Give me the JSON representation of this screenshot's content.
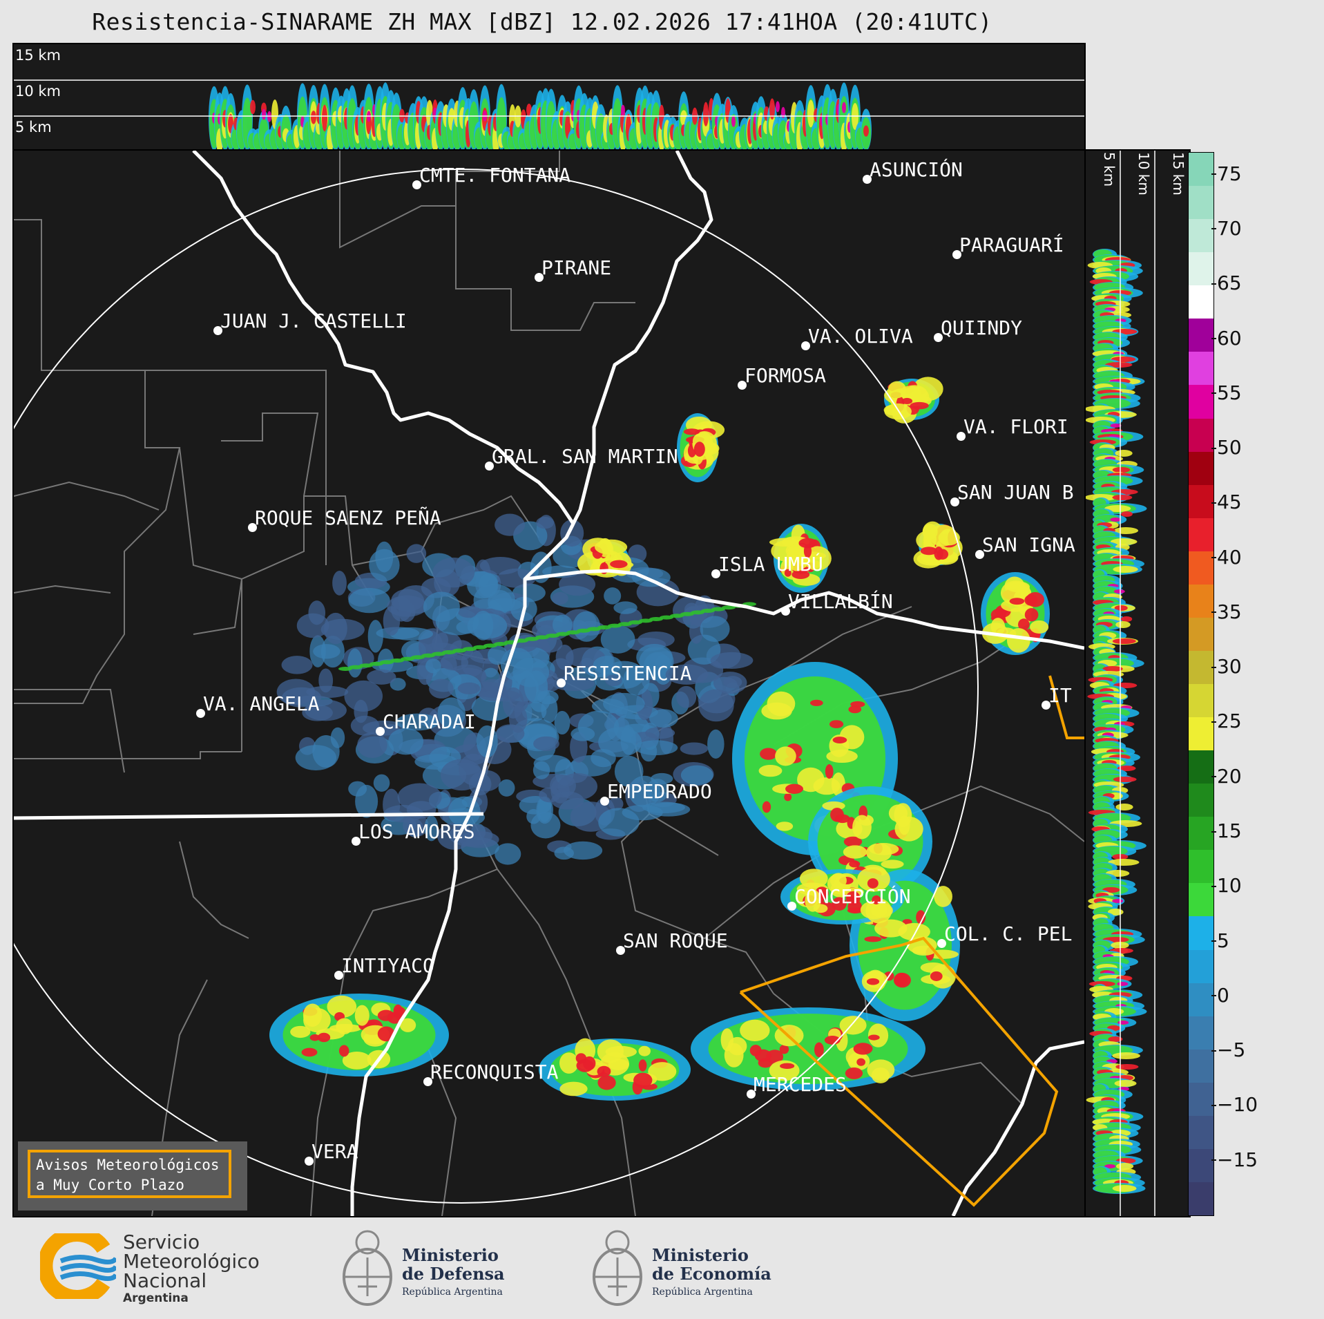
{
  "title": "Resistencia-SINARAME ZH MAX [dBZ] 12.02.2026 17:41HOA (20:41UTC)",
  "top_panel": {
    "height_labels": [
      "15 km",
      "10 km",
      "5 km"
    ]
  },
  "side_panel": {
    "height_labels": [
      "5 km",
      "10 km",
      "15 km"
    ]
  },
  "cities": [
    {
      "name": "CMTE. FONTANA"
    },
    {
      "name": "ASUNCIÓN"
    },
    {
      "name": "PARAGUARÍ"
    },
    {
      "name": "PIRANE"
    },
    {
      "name": "JUAN J. CASTELLI"
    },
    {
      "name": "VA. OLIVA"
    },
    {
      "name": "QUIINDY"
    },
    {
      "name": "FORMOSA"
    },
    {
      "name": "VA. FLORI"
    },
    {
      "name": "GRAL. SAN MARTIN"
    },
    {
      "name": "SAN JUAN B"
    },
    {
      "name": "ROQUE SAENZ PEÑA"
    },
    {
      "name": "SAN IGNA"
    },
    {
      "name": "ISLA UMBÚ"
    },
    {
      "name": "VILLALBÍN"
    },
    {
      "name": "RESISTENCIA"
    },
    {
      "name": "IT"
    },
    {
      "name": "VA. ANGELA"
    },
    {
      "name": "CHARADAI"
    },
    {
      "name": "EMPEDRADO"
    },
    {
      "name": "LOS AMORES"
    },
    {
      "name": "CONCEPCIÓN"
    },
    {
      "name": "COL. C. PEL"
    },
    {
      "name": "SAN ROQUE"
    },
    {
      "name": "INTIYACO"
    },
    {
      "name": "RECONQUISTA"
    },
    {
      "name": "MERCEDES"
    },
    {
      "name": "VERA"
    }
  ],
  "colorbar": {
    "ticks": [
      "75",
      "70",
      "65",
      "60",
      "55",
      "50",
      "45",
      "40",
      "35",
      "30",
      "25",
      "20",
      "15",
      "10",
      "5",
      "0",
      "−5",
      "−10",
      "−15"
    ],
    "range": [
      -20,
      77
    ],
    "colors": [
      "#3a3d6b",
      "#3c4878",
      "#3f5585",
      "#406292",
      "#3f70a0",
      "#3a7eb0",
      "#2f8ec2",
      "#23a0d8",
      "#1db0e8",
      "#3cd83a",
      "#2fbf2c",
      "#27a523",
      "#1f8a1c",
      "#156e15",
      "#eeee33",
      "#d6d633",
      "#c4b830",
      "#d49a24",
      "#e8821a",
      "#f05a20",
      "#e8202c",
      "#c80c1c",
      "#a00010",
      "#c80050",
      "#e000a0",
      "#e040e0",
      "#a0009a",
      "#ffffff",
      "#dff3ea",
      "#bfe9d8",
      "#a0dfc6",
      "#86d6b8"
    ]
  },
  "warning": {
    "line1": "Avisos Meteorológicos",
    "line2": "a Muy Corto Plazo"
  },
  "logos": {
    "smn": [
      "Servicio",
      "Meteorológico",
      "Nacional",
      "Argentina"
    ],
    "defensa": [
      "Ministerio",
      "de Defensa",
      "República Argentina"
    ],
    "economia": [
      "Ministerio",
      "de Economía",
      "República Argentina"
    ]
  }
}
